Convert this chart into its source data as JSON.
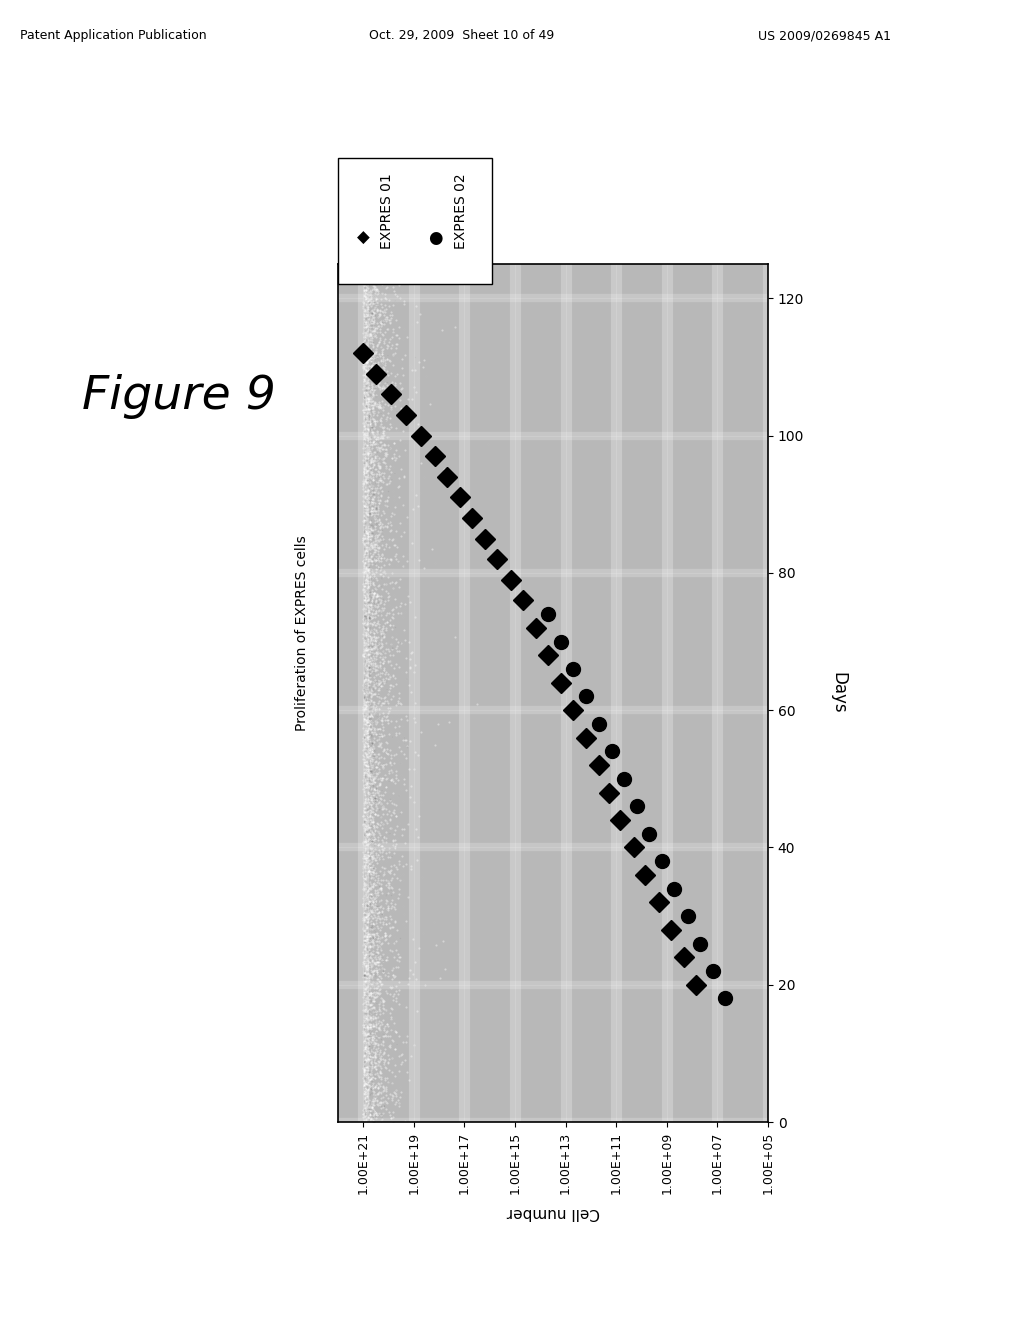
{
  "title": "Figure 9",
  "subtitle": "Proliferation of EXPRES cells",
  "cell_number_label": "Cell number",
  "ylabel": "Days",
  "header_left": "Patent Application Publication",
  "header_center": "Oct. 29, 2009  Sheet 10 of 49",
  "header_right": "US 2009/0269845 A1",
  "x_tick_labels": [
    "1.00E+21",
    "1.00E+19",
    "1.00E+17",
    "1.00E+15",
    "1.00E+13",
    "1.00E+11",
    "1.00E+09",
    "1.00E+07",
    "1.00E+05"
  ],
  "x_log_values": [
    1e+21,
    1e+19,
    1e+17,
    1000000000000000.0,
    10000000000000.0,
    100000000000.0,
    1000000000.0,
    10000000.0,
    100000.0
  ],
  "y_ticks": [
    0,
    20,
    40,
    60,
    80,
    100,
    120
  ],
  "series1_name": "EXPRES 01",
  "series2_name": "EXPRES 02",
  "series1_marker": "D",
  "series2_marker": "o",
  "series1_x": [
    1e+21,
    3e+20,
    8e+19,
    2e+19,
    5e+18,
    1.5e+18,
    5e+17,
    1.5e+17,
    5e+16,
    1.5e+16,
    5000000000000000.0,
    1500000000000000.0,
    500000000000000.0,
    150000000000000.0,
    50000000000000.0,
    15000000000000.0,
    5000000000000.0,
    1500000000000.0,
    500000000000.0,
    200000000000.0,
    70000000000.0,
    20000000000.0,
    7000000000.0,
    2000000000.0,
    700000000.0,
    200000000.0,
    70000000.0
  ],
  "series1_y": [
    112,
    109,
    106,
    103,
    100,
    97,
    94,
    91,
    88,
    85,
    82,
    79,
    76,
    72,
    68,
    64,
    60,
    56,
    52,
    48,
    44,
    40,
    36,
    32,
    28,
    24,
    20
  ],
  "series2_x": [
    50000000000000.0,
    15000000000000.0,
    5000000000000.0,
    1500000000000.0,
    500000000000.0,
    150000000000.0,
    50000000000.0,
    15000000000.0,
    5000000000.0,
    1500000000.0,
    500000000.0,
    150000000.0,
    50000000.0,
    15000000.0,
    5000000.0
  ],
  "series2_y": [
    74,
    70,
    66,
    62,
    58,
    54,
    50,
    46,
    42,
    38,
    34,
    30,
    26,
    22,
    18
  ],
  "bg_color": "#b8b8b8",
  "xlim_log": [
    100000.0,
    1e+22
  ],
  "ylim": [
    0,
    125
  ],
  "marker_size": 10
}
